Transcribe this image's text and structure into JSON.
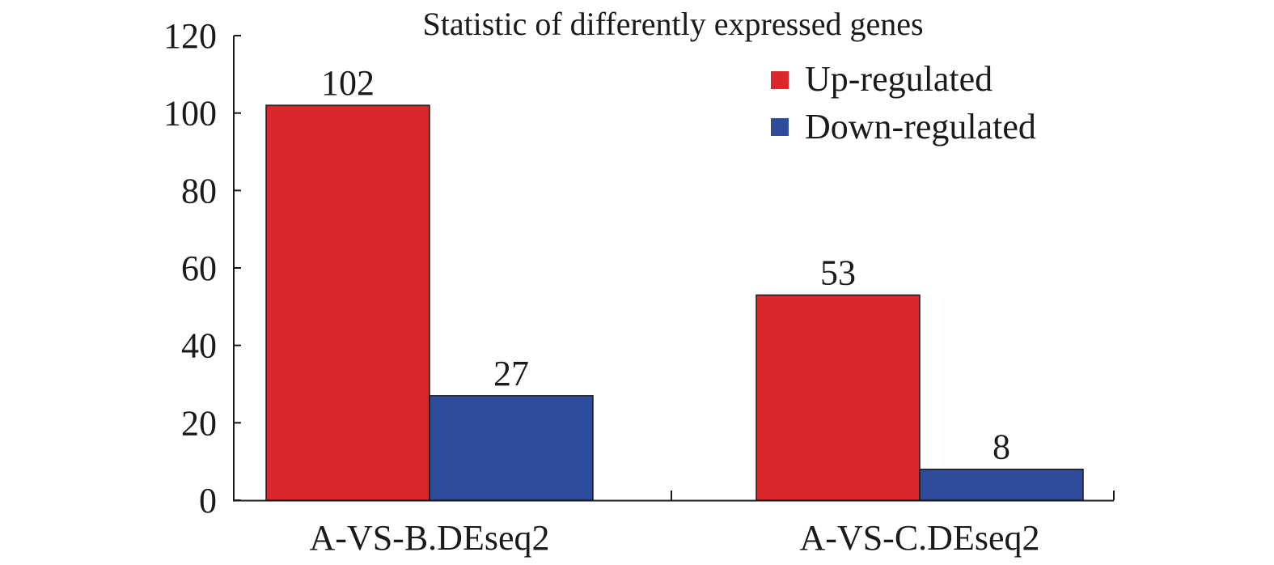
{
  "chart_data": {
    "type": "bar",
    "title": "Statistic of differently expressed genes",
    "xlabel": "",
    "ylabel": "",
    "categories": [
      "A-VS-B.DEseq2",
      "A-VS-C.DEseq2"
    ],
    "series": [
      {
        "name": "Up-regulated",
        "values": [
          102,
          53
        ],
        "color": "#d9272b"
      },
      {
        "name": "Down-regulated",
        "values": [
          27,
          8
        ],
        "color": "#2e4b9c"
      }
    ],
    "data_labels": [
      [
        "102",
        "53"
      ],
      [
        "27",
        "8"
      ]
    ],
    "ylim": [
      0,
      120
    ],
    "yticks": [
      0,
      20,
      40,
      60,
      80,
      100,
      120
    ],
    "grid": false,
    "legend": "top-right"
  }
}
